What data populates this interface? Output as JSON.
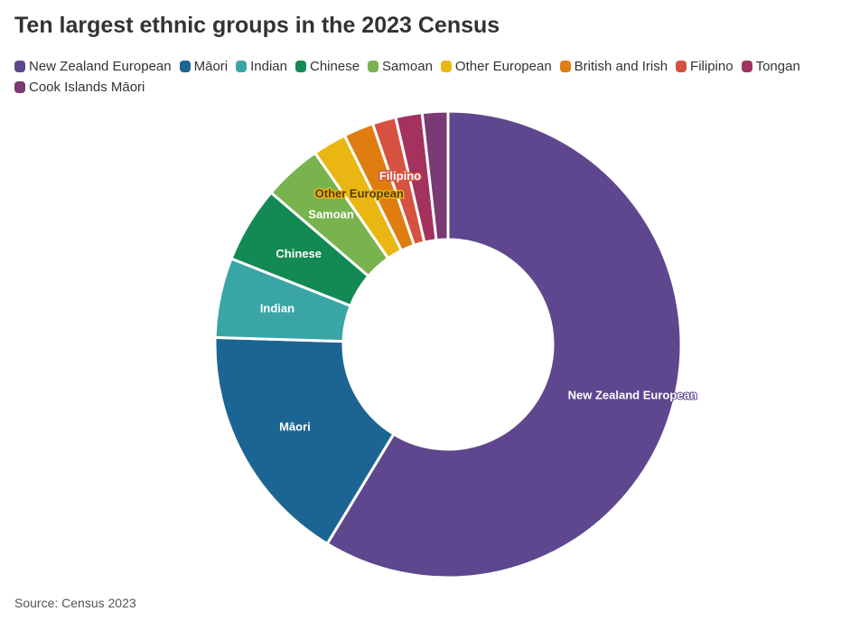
{
  "title": "Ten largest ethnic groups in the 2023 Census",
  "source": "Source: Census 2023",
  "chart_data": {
    "type": "pie",
    "donut": true,
    "legend_position": "top-left",
    "categories": [
      "New Zealand European",
      "Māori",
      "Indian",
      "Chinese",
      "Samoan",
      "Other European",
      "British and Irish",
      "Filipino",
      "Tongan",
      "Cook Islands Māori"
    ],
    "values": [
      3100000,
      887000,
      292000,
      279000,
      214000,
      124000,
      110000,
      86000,
      97000,
      94000
    ],
    "colors": [
      "#5e478e",
      "#1c6592",
      "#39a6a5",
      "#138953",
      "#79b34e",
      "#eab712",
      "#e07d11",
      "#d55240",
      "#a3325f",
      "#7a3a73"
    ],
    "slice_labels": [
      "New Zealand European",
      "Māori",
      "Indian",
      "Chinese",
      "Samoan",
      "Other European",
      "",
      "Filipino",
      "",
      ""
    ]
  }
}
